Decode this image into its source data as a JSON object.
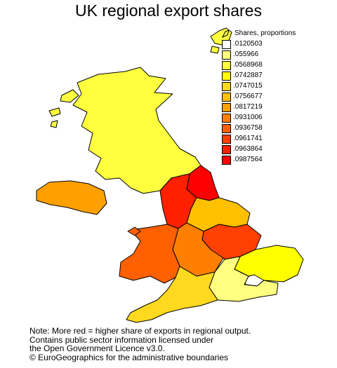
{
  "title": "UK regional export shares",
  "legend": {
    "title": "Shares, proportions",
    "items": [
      {
        "label": ".0120503",
        "color": "#ffffff"
      },
      {
        "label": ".055966",
        "color": "#ffff80"
      },
      {
        "label": ".0568968",
        "color": "#ffff40"
      },
      {
        "label": ".0742887",
        "color": "#ffff00"
      },
      {
        "label": ".0747015",
        "color": "#ffd820"
      },
      {
        "label": ".0756677",
        "color": "#ffc000"
      },
      {
        "label": ".0817219",
        "color": "#ffa000"
      },
      {
        "label": ".0931006",
        "color": "#ff8000"
      },
      {
        "label": ".0936758",
        "color": "#ff6000"
      },
      {
        "label": ".0961741",
        "color": "#ff4000"
      },
      {
        "label": ".0963864",
        "color": "#ff2000"
      },
      {
        "label": ".0987564",
        "color": "#ff0000"
      }
    ]
  },
  "regions": {
    "scotland": {
      "color": "#ffff40"
    },
    "northern_ireland": {
      "color": "#ffa000"
    },
    "north_east": {
      "color": "#ff0000"
    },
    "north_west": {
      "color": "#ff2000"
    },
    "yorkshire": {
      "color": "#ffc000"
    },
    "east_midlands": {
      "color": "#ff4000"
    },
    "west_midlands": {
      "color": "#ff8000"
    },
    "wales": {
      "color": "#ff6000"
    },
    "east": {
      "color": "#ffff00"
    },
    "london": {
      "color": "#ffffff"
    },
    "south_east": {
      "color": "#ffff80"
    },
    "south_west": {
      "color": "#ffd820"
    }
  },
  "note": [
    "Note: More red = higher share of exports in regional output.",
    "Contains public sector information licensed under",
    "the Open Government Licence v3.0.",
    "© EuroGeographics for the administrative boundaries"
  ]
}
